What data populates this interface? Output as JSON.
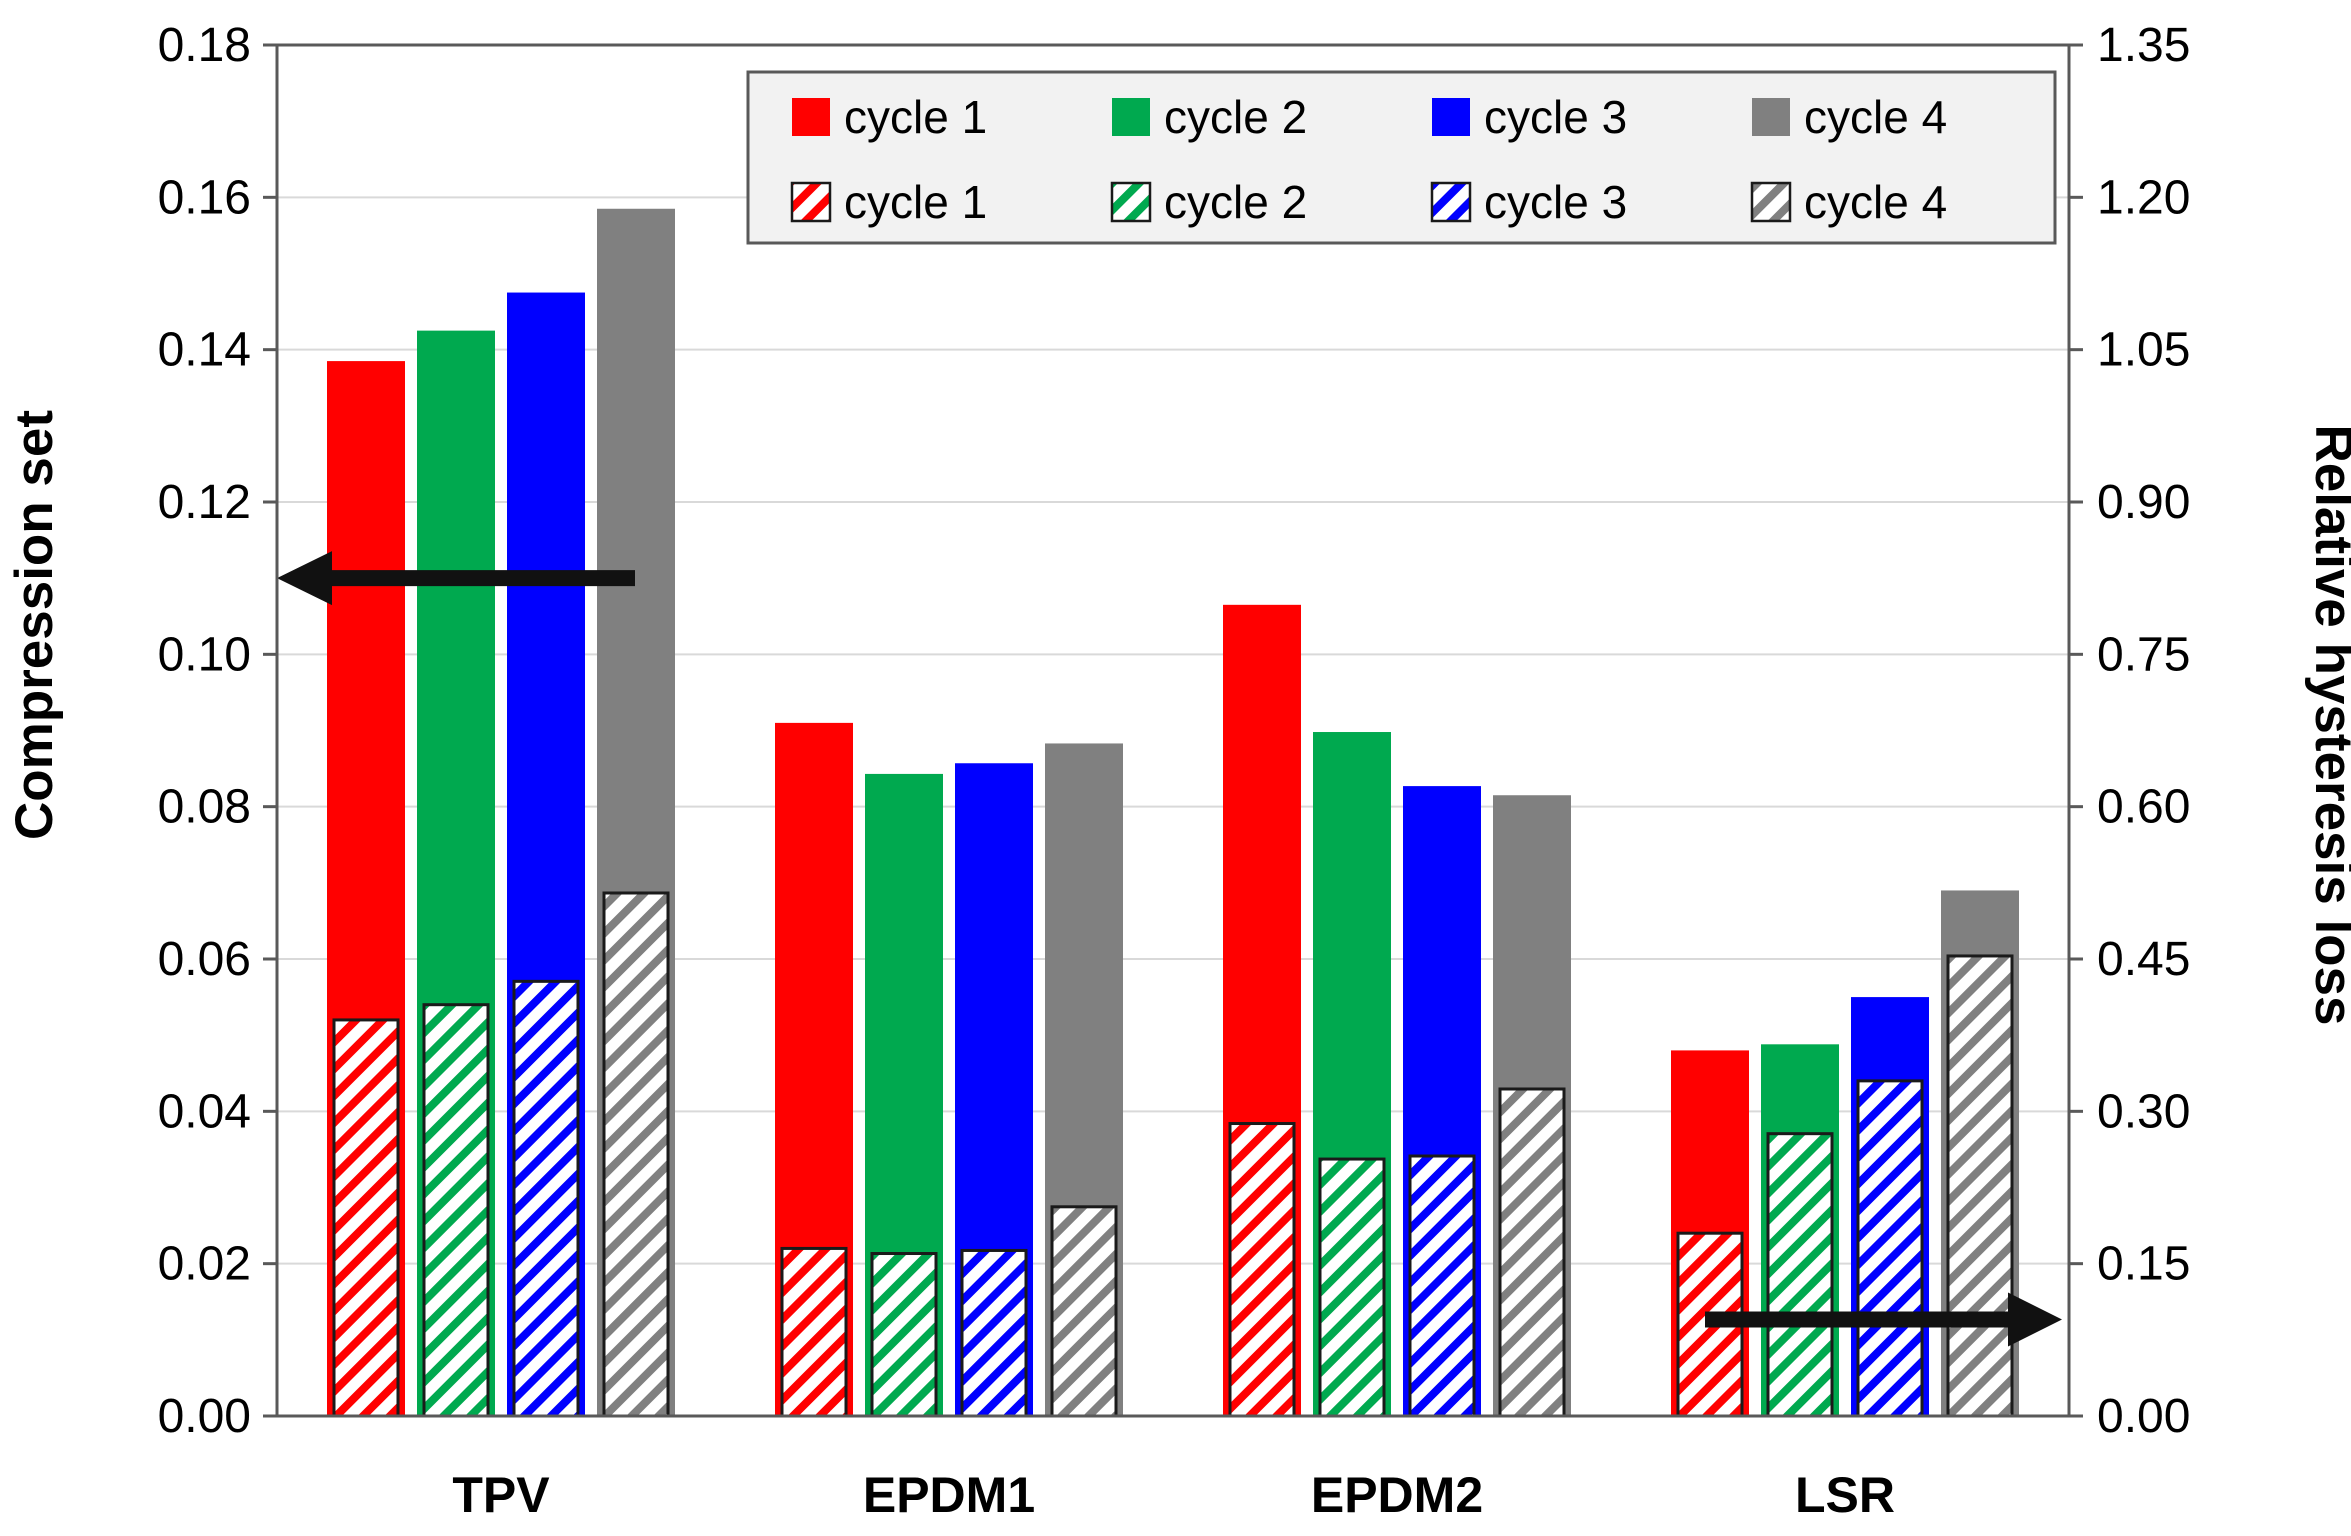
{
  "figure": {
    "background": "#ffffff",
    "frame_color": "#595959",
    "gridline_color": "#d9d9d9",
    "text_color": "#000000"
  },
  "chart_data": {
    "type": "bar",
    "title": "",
    "categories": [
      "TPV",
      "EPDM1",
      "EPDM2",
      "LSR"
    ],
    "left_axis": {
      "label": "Compression set",
      "min": 0.0,
      "max": 0.18,
      "step": 0.02,
      "tick_labels": [
        "0.00",
        "0.02",
        "0.04",
        "0.06",
        "0.08",
        "0.10",
        "0.12",
        "0.14",
        "0.16",
        "0.18"
      ]
    },
    "right_axis": {
      "label": "Relative hysteresis loss",
      "min": 0.0,
      "max": 1.35,
      "step": 0.15,
      "tick_labels": [
        "0.00",
        "0.15",
        "0.30",
        "0.45",
        "0.60",
        "0.75",
        "0.90",
        "1.05",
        "1.20",
        "1.35"
      ]
    },
    "grid": true,
    "legend_position": "top-center",
    "series_solid": [
      {
        "name": "cycle 1",
        "style": "solid",
        "axis": "left",
        "color": "#ff0000",
        "values": [
          0.1385,
          0.091,
          0.1065,
          0.048
        ]
      },
      {
        "name": "cycle 2",
        "style": "solid",
        "axis": "left",
        "color": "#00a94f",
        "values": [
          0.1425,
          0.0843,
          0.0898,
          0.0488
        ]
      },
      {
        "name": "cycle 3",
        "style": "solid",
        "axis": "left",
        "color": "#0000ff",
        "values": [
          0.1475,
          0.0857,
          0.0827,
          0.055
        ]
      },
      {
        "name": "cycle 4",
        "style": "solid",
        "axis": "left",
        "color": "#808080",
        "values": [
          0.1585,
          0.0883,
          0.0815,
          0.069
        ]
      }
    ],
    "series_hatched": [
      {
        "name": "cycle 1",
        "style": "hatched",
        "axis": "right",
        "color": "#ff0000",
        "values": [
          0.39,
          0.165,
          0.288,
          0.18
        ]
      },
      {
        "name": "cycle 2",
        "style": "hatched",
        "axis": "right",
        "color": "#00a94f",
        "values": [
          0.405,
          0.16,
          0.253,
          0.278
        ]
      },
      {
        "name": "cycle 3",
        "style": "hatched",
        "axis": "right",
        "color": "#0000ff",
        "values": [
          0.428,
          0.163,
          0.256,
          0.33
        ]
      },
      {
        "name": "cycle 4",
        "style": "hatched",
        "axis": "right",
        "color": "#808080",
        "values": [
          0.515,
          0.206,
          0.322,
          0.453
        ]
      }
    ],
    "legend": {
      "background": "#f2f2f2",
      "border_color": "#595959",
      "rows": [
        {
          "style": "solid",
          "labels": [
            "cycle 1",
            "cycle 2",
            "cycle 3",
            "cycle 4"
          ]
        },
        {
          "style": "hatched",
          "labels": [
            "cycle 1",
            "cycle 2",
            "cycle 3",
            "cycle 4"
          ]
        }
      ]
    },
    "annotations": {
      "left_arrow": {
        "direction": "left",
        "meaning": "solid bars read on left axis",
        "y_left": 0.11
      },
      "right_arrow": {
        "direction": "right",
        "meaning": "hatched bars read on right axis",
        "y_right": 0.095
      }
    }
  }
}
